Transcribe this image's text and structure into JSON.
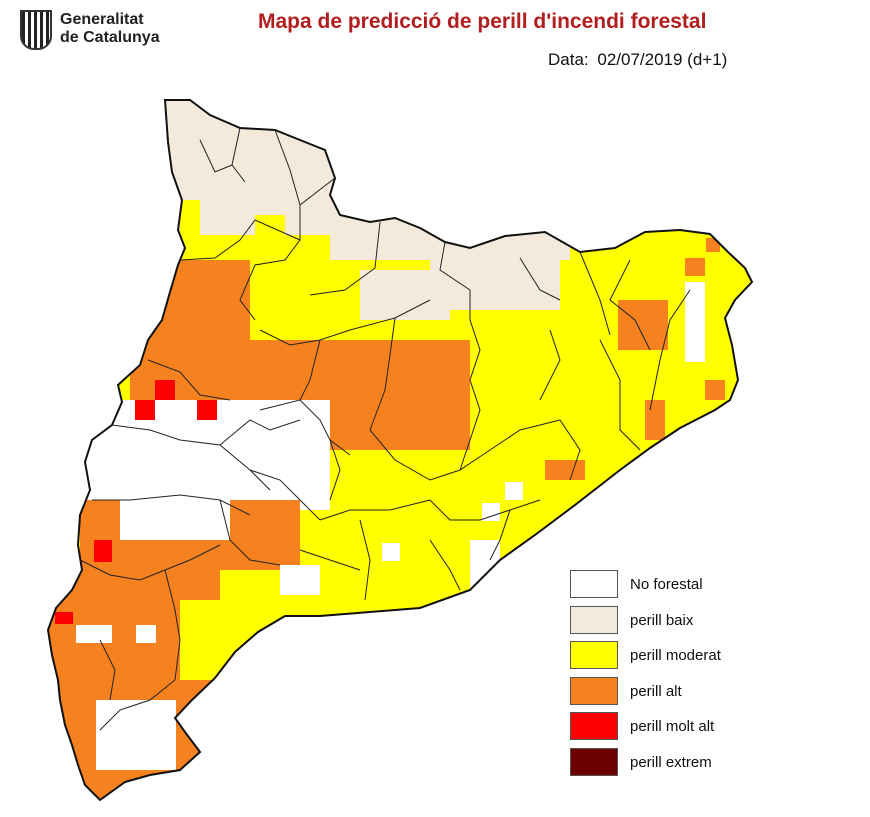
{
  "header": {
    "org_line1": "Generalitat",
    "org_line2": "de Catalunya",
    "title": "Mapa de predicció de perill d'incendi forestal",
    "date_label": "Data:",
    "date_value": "02/07/2019 (d+1)"
  },
  "colors": {
    "no_forestal": "#ffffff",
    "perill_baix": "#f4eadc",
    "perill_moderat": "#ffff00",
    "perill_alt": "#f5821f",
    "perill_molt_alt": "#ff0000",
    "perill_extrem": "#6b0000",
    "title": "#b21e1e"
  },
  "legend": [
    {
      "label": "No forestal",
      "color": "#ffffff"
    },
    {
      "label": "perill baix",
      "color": "#f4eadc"
    },
    {
      "label": "perill moderat",
      "color": "#ffff00"
    },
    {
      "label": "perill alt",
      "color": "#f5821f"
    },
    {
      "label": "perill molt alt",
      "color": "#ff0000"
    },
    {
      "label": "perill extrem",
      "color": "#6b0000"
    }
  ]
}
